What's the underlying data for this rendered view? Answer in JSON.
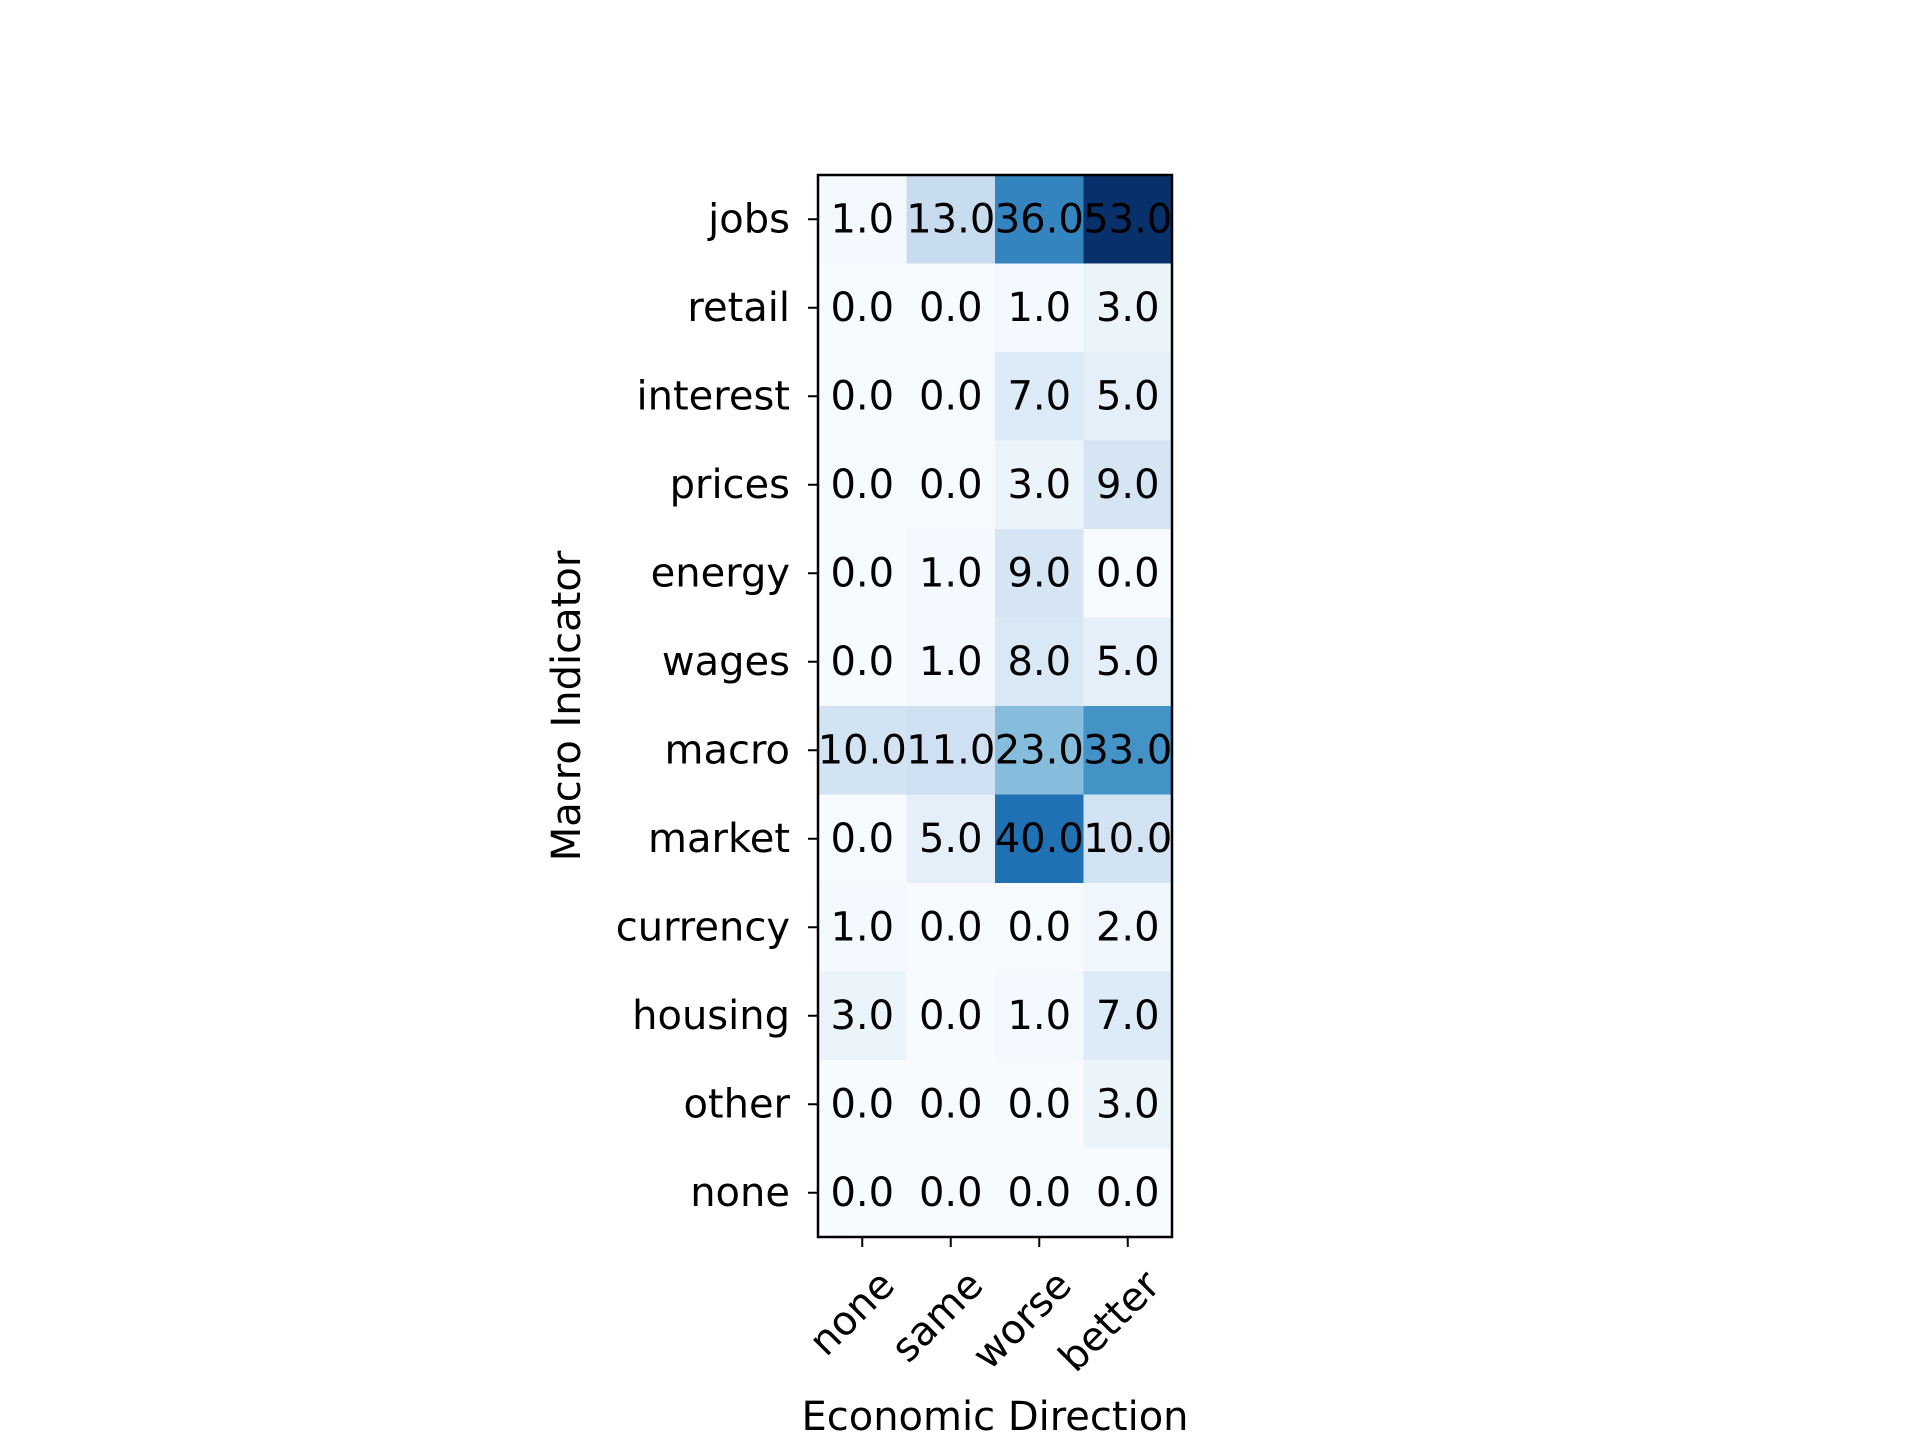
{
  "chart_data": {
    "type": "heatmap",
    "title": "",
    "xlabel": "Economic Direction",
    "ylabel": "Macro Indicator",
    "x_categories": [
      "none",
      "same",
      "worse",
      "better"
    ],
    "y_categories": [
      "jobs",
      "retail",
      "interest",
      "prices",
      "energy",
      "wages",
      "macro",
      "market",
      "currency",
      "housing",
      "other",
      "none"
    ],
    "values": [
      [
        1.0,
        13.0,
        36.0,
        53.0
      ],
      [
        0.0,
        0.0,
        1.0,
        3.0
      ],
      [
        0.0,
        0.0,
        7.0,
        5.0
      ],
      [
        0.0,
        0.0,
        3.0,
        9.0
      ],
      [
        0.0,
        1.0,
        9.0,
        0.0
      ],
      [
        0.0,
        1.0,
        8.0,
        5.0
      ],
      [
        10.0,
        11.0,
        23.0,
        33.0
      ],
      [
        0.0,
        5.0,
        40.0,
        10.0
      ],
      [
        1.0,
        0.0,
        0.0,
        2.0
      ],
      [
        3.0,
        0.0,
        1.0,
        7.0
      ],
      [
        0.0,
        0.0,
        0.0,
        3.0
      ],
      [
        0.0,
        0.0,
        0.0,
        0.0
      ]
    ],
    "value_range": [
      0,
      53
    ],
    "colormap": "Blues",
    "colormap_stops": [
      "#f7fbff",
      "#deebf7",
      "#c6dbef",
      "#9ecae1",
      "#6baed6",
      "#4292c6",
      "#2171b5",
      "#08519c",
      "#08306b"
    ],
    "x_tick_rotation_deg": 45,
    "grid": false,
    "colorbar": false
  }
}
